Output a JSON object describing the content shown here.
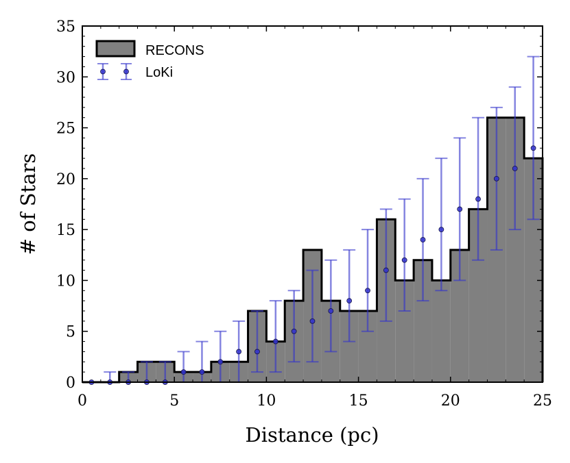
{
  "chart_data": {
    "type": "bar",
    "title": "",
    "xlabel": "Distance (pc)",
    "ylabel": "# of Stars",
    "xlim": [
      0,
      25
    ],
    "ylim": [
      0,
      35
    ],
    "xticks": [
      0,
      5,
      10,
      15,
      20,
      25
    ],
    "yticks": [
      0,
      5,
      10,
      15,
      20,
      25,
      30,
      35
    ],
    "legend_position": "top-left",
    "colors": {
      "recons_fill": "#808080",
      "recons_edge": "#000000",
      "loki": "#3333cc"
    },
    "series": [
      {
        "name": "RECONS",
        "kind": "step-histogram",
        "bin_edges": [
          0,
          1,
          2,
          3,
          4,
          5,
          6,
          7,
          8,
          9,
          10,
          11,
          12,
          13,
          14,
          15,
          16,
          17,
          18,
          19,
          20,
          21,
          22,
          23,
          24,
          25
        ],
        "values": [
          0,
          0,
          1,
          2,
          2,
          1,
          1,
          2,
          2,
          7,
          4,
          8,
          13,
          8,
          7,
          7,
          16,
          10,
          12,
          10,
          13,
          17,
          26,
          26,
          22
        ]
      },
      {
        "name": "LoKi",
        "kind": "errorbar",
        "x": [
          0.5,
          1.5,
          2.5,
          3.5,
          4.5,
          5.5,
          6.5,
          7.5,
          8.5,
          9.5,
          10.5,
          11.5,
          12.5,
          13.5,
          14.5,
          15.5,
          16.5,
          17.5,
          18.5,
          19.5,
          20.5,
          21.5,
          22.5,
          23.5,
          24.5
        ],
        "y": [
          0,
          0,
          0,
          0,
          0,
          1,
          1,
          2,
          3,
          3,
          4,
          5,
          6,
          7,
          8,
          9,
          11,
          12,
          14,
          15,
          17,
          18,
          20,
          21,
          23
        ],
        "y_low": [
          0,
          0,
          0,
          0,
          0,
          0,
          0,
          0,
          0,
          1,
          1,
          2,
          2,
          3,
          4,
          5,
          6,
          7,
          8,
          9,
          10,
          12,
          13,
          15,
          16
        ],
        "y_high": [
          0,
          1,
          1,
          2,
          2,
          3,
          4,
          5,
          6,
          7,
          8,
          9,
          11,
          12,
          13,
          15,
          17,
          18,
          20,
          22,
          24,
          26,
          27,
          29,
          32
        ]
      }
    ]
  }
}
